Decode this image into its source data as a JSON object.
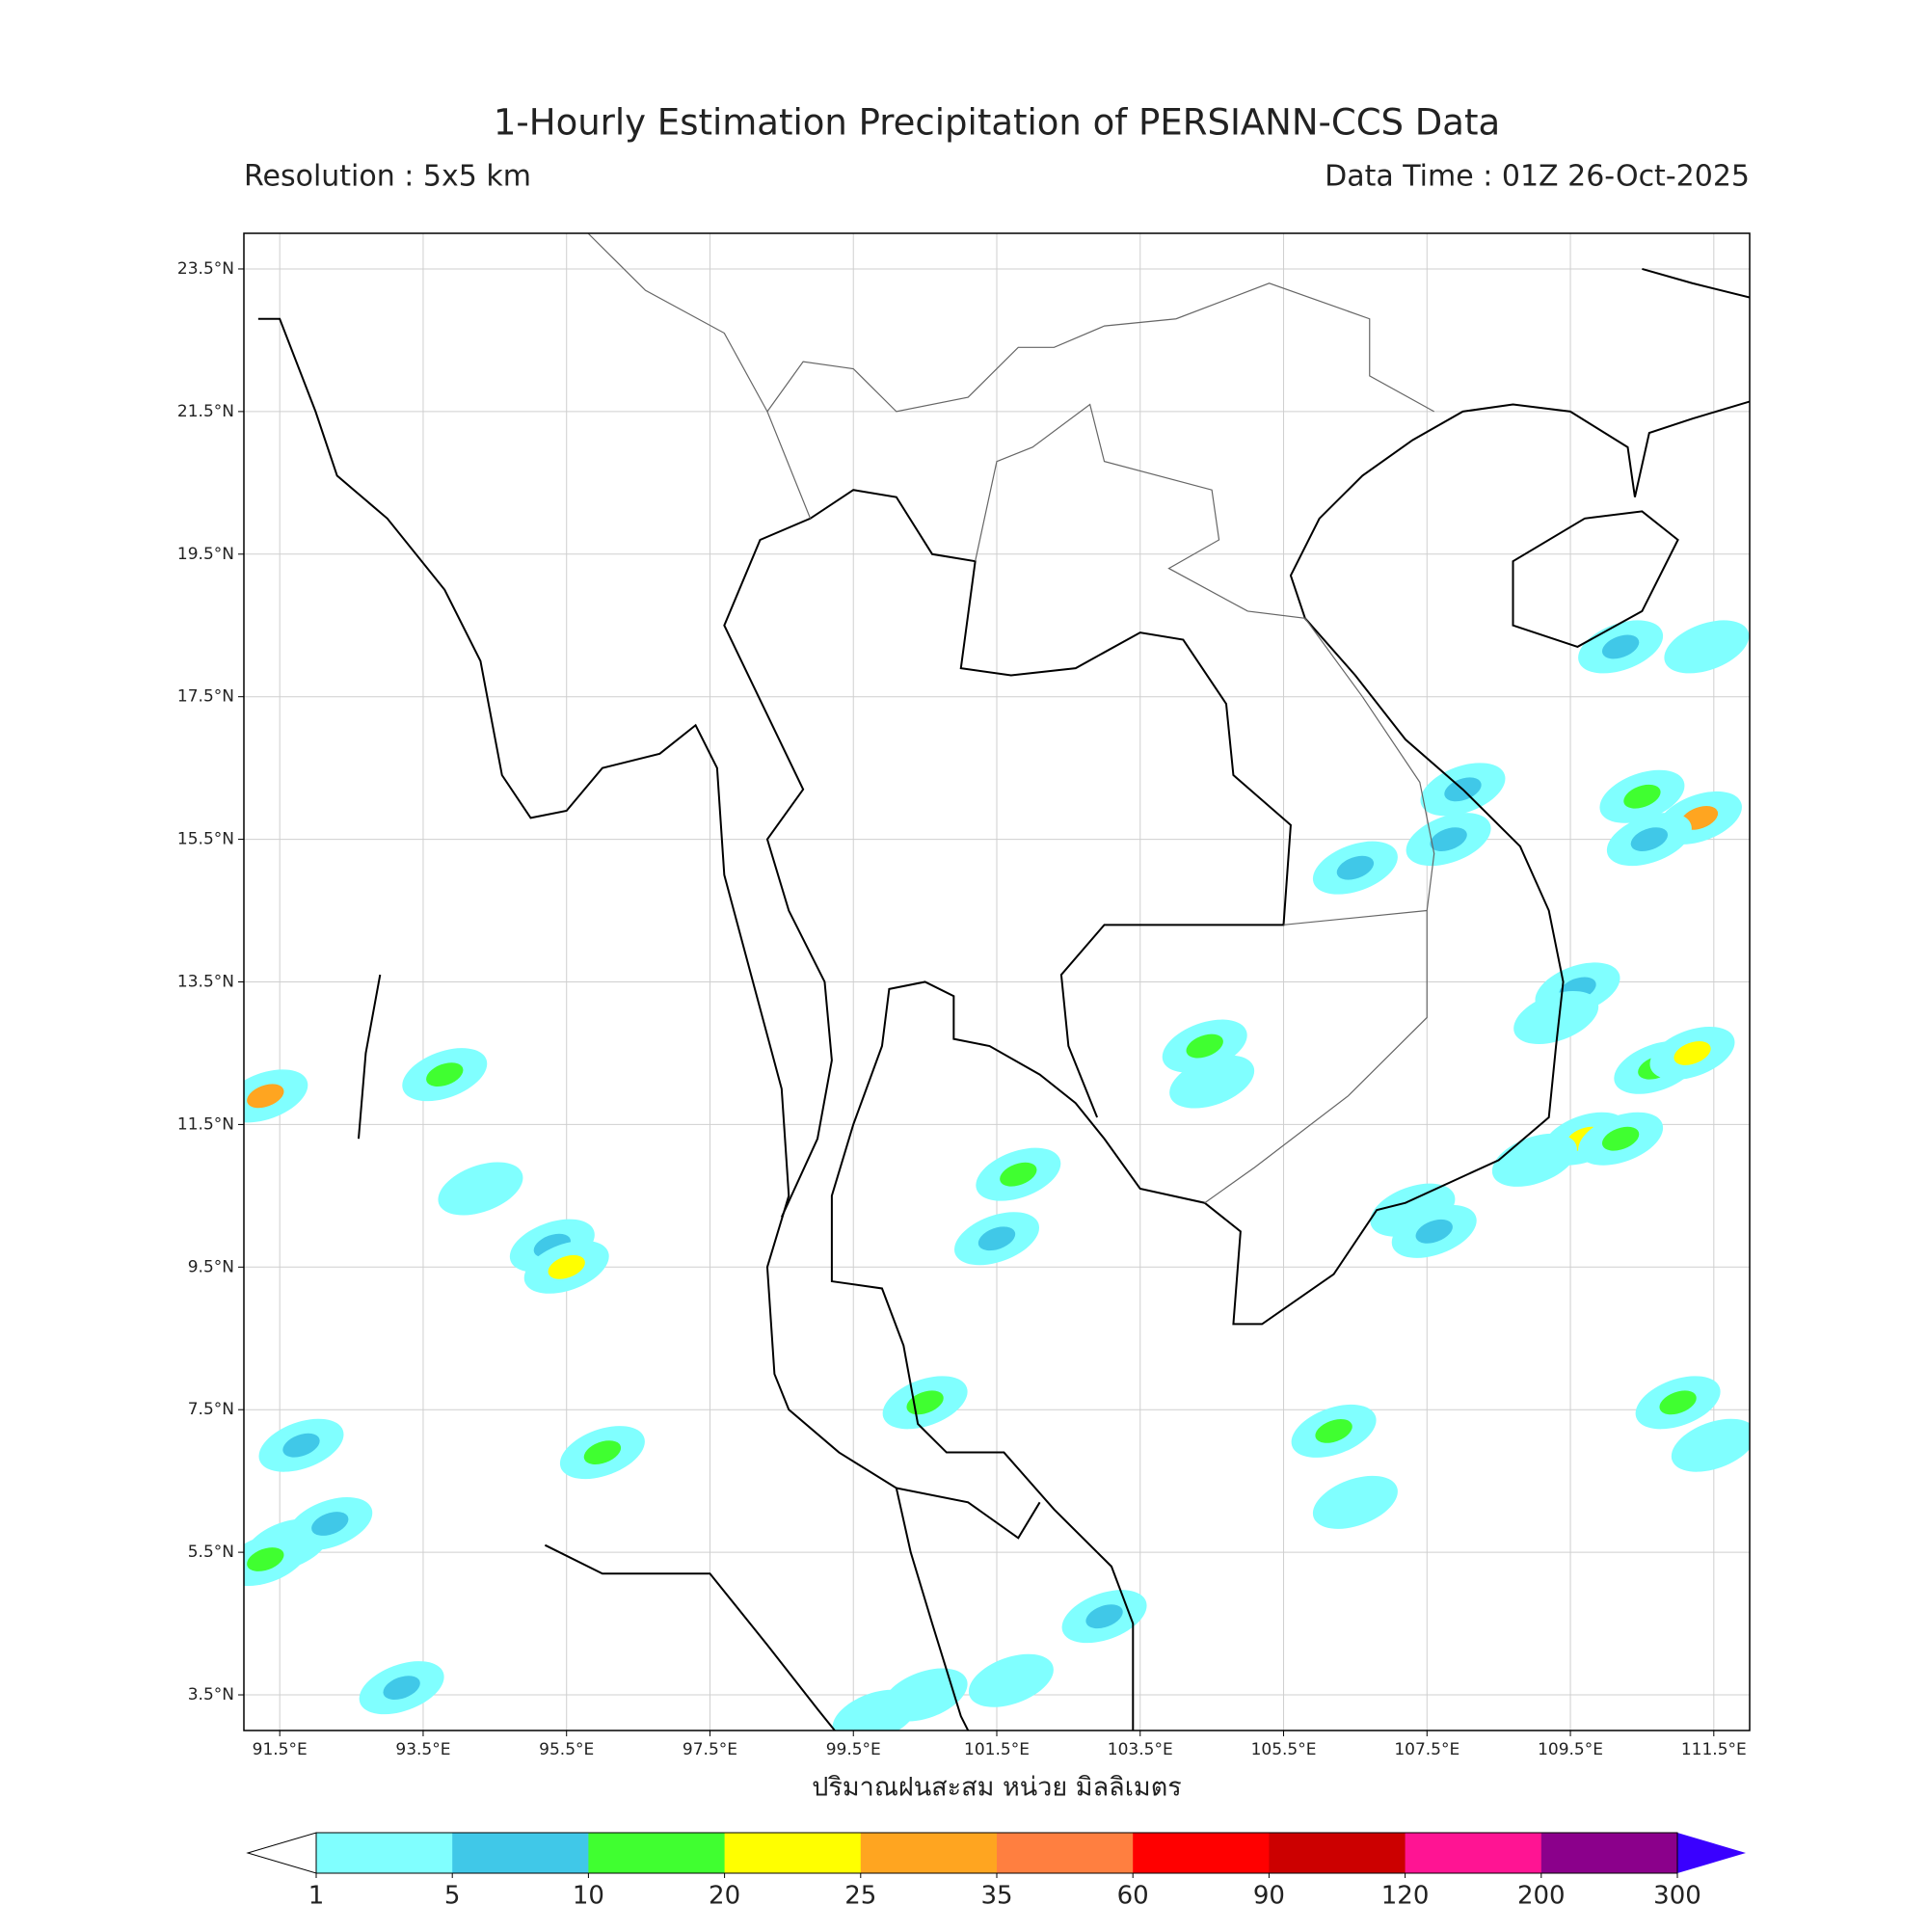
{
  "map": {
    "title": "1-Hourly Estimation Precipitation of PERSIANN-CCS Data",
    "resolution": "Resolution : 5x5 km",
    "data_time": "Data Time : 01Z 26-Oct-2025",
    "xlim": [
      91,
      112
    ],
    "ylim": [
      3,
      24
    ],
    "xticks": [
      {
        "value": 91.5,
        "label": "91.5°E"
      },
      {
        "value": 93.5,
        "label": "93.5°E"
      },
      {
        "value": 95.5,
        "label": "95.5°E"
      },
      {
        "value": 97.5,
        "label": "97.5°E"
      },
      {
        "value": 99.5,
        "label": "99.5°E"
      },
      {
        "value": 101.5,
        "label": "101.5°E"
      },
      {
        "value": 103.5,
        "label": "103.5°E"
      },
      {
        "value": 105.5,
        "label": "105.5°E"
      },
      {
        "value": 107.5,
        "label": "107.5°E"
      },
      {
        "value": 109.5,
        "label": "109.5°E"
      },
      {
        "value": 111.5,
        "label": "111.5°E"
      }
    ],
    "yticks": [
      {
        "value": 3.5,
        "label": "3.5°N"
      },
      {
        "value": 5.5,
        "label": "5.5°N"
      },
      {
        "value": 7.5,
        "label": "7.5°N"
      },
      {
        "value": 9.5,
        "label": "9.5°N"
      },
      {
        "value": 11.5,
        "label": "11.5°N"
      },
      {
        "value": 13.5,
        "label": "13.5°N"
      },
      {
        "value": 15.5,
        "label": "15.5°N"
      },
      {
        "value": 17.5,
        "label": "17.5°N"
      },
      {
        "value": 19.5,
        "label": "19.5°N"
      },
      {
        "value": 21.5,
        "label": "21.5°N"
      },
      {
        "value": 23.5,
        "label": "23.5°N"
      }
    ],
    "grid": true,
    "colorbar_label": "ปริมาณฝนสะสม หน่วย มิลลิเมตร",
    "levels": [
      1,
      5,
      10,
      20,
      25,
      35,
      60,
      90,
      120,
      200,
      300
    ],
    "colors": [
      "#80ffff",
      "#40c8e8",
      "#40ff30",
      "#ffff00",
      "#ffa520",
      "#ff7f40",
      "#ff0000",
      "#cc0000",
      "#ff1493",
      "#8b008b"
    ],
    "under_color": "#ffffff",
    "over_color": "#3a00ff",
    "rain_cells": [
      {
        "lon": 91.6,
        "lat": 5.6,
        "value": 8
      },
      {
        "lon": 92.2,
        "lat": 5.9,
        "value": 6
      },
      {
        "lon": 93.2,
        "lat": 3.6,
        "value": 7
      },
      {
        "lon": 91.3,
        "lat": 5.4,
        "value": 15
      },
      {
        "lon": 91.3,
        "lat": 11.9,
        "value": 25
      },
      {
        "lon": 93.8,
        "lat": 12.2,
        "value": 12
      },
      {
        "lon": 95.3,
        "lat": 9.8,
        "value": 5
      },
      {
        "lon": 95.5,
        "lat": 9.5,
        "value": 20
      },
      {
        "lon": 101.8,
        "lat": 10.8,
        "value": 10
      },
      {
        "lon": 101.5,
        "lat": 9.9,
        "value": 7
      },
      {
        "lon": 100.5,
        "lat": 7.6,
        "value": 15
      },
      {
        "lon": 106.5,
        "lat": 15.1,
        "value": 6
      },
      {
        "lon": 107.8,
        "lat": 15.5,
        "value": 8
      },
      {
        "lon": 108,
        "lat": 16.2,
        "value": 6
      },
      {
        "lon": 110.2,
        "lat": 18.2,
        "value": 5
      },
      {
        "lon": 111.4,
        "lat": 18.2,
        "value": 3
      },
      {
        "lon": 110.5,
        "lat": 16.1,
        "value": 12
      },
      {
        "lon": 111.3,
        "lat": 15.8,
        "value": 25
      },
      {
        "lon": 110.6,
        "lat": 15.5,
        "value": 8
      },
      {
        "lon": 109.6,
        "lat": 13.4,
        "value": 7
      },
      {
        "lon": 109.3,
        "lat": 13,
        "value": 4
      },
      {
        "lon": 110.7,
        "lat": 12.3,
        "value": 15
      },
      {
        "lon": 111.2,
        "lat": 12.5,
        "value": 20
      },
      {
        "lon": 109.7,
        "lat": 11.3,
        "value": 22
      },
      {
        "lon": 110.2,
        "lat": 11.3,
        "value": 12
      },
      {
        "lon": 109,
        "lat": 11,
        "value": 4
      },
      {
        "lon": 107.3,
        "lat": 10.3,
        "value": 3
      },
      {
        "lon": 107.6,
        "lat": 10,
        "value": 8
      },
      {
        "lon": 106.2,
        "lat": 7.2,
        "value": 18
      },
      {
        "lon": 106.5,
        "lat": 6.2,
        "value": 3
      },
      {
        "lon": 111.5,
        "lat": 7,
        "value": 4
      },
      {
        "lon": 111,
        "lat": 7.6,
        "value": 11
      },
      {
        "lon": 91.8,
        "lat": 7,
        "value": 7
      },
      {
        "lon": 96,
        "lat": 6.9,
        "value": 13
      },
      {
        "lon": 104.4,
        "lat": 12.6,
        "value": 10
      },
      {
        "lon": 104.5,
        "lat": 12.1,
        "value": 2
      },
      {
        "lon": 100.5,
        "lat": 3.5,
        "value": 3
      },
      {
        "lon": 101.7,
        "lat": 3.7,
        "value": 2
      },
      {
        "lon": 94.3,
        "lat": 10.6,
        "value": 4
      },
      {
        "lon": 99.8,
        "lat": 3.2,
        "value": 3
      },
      {
        "lon": 103,
        "lat": 4.6,
        "value": 6
      }
    ]
  }
}
